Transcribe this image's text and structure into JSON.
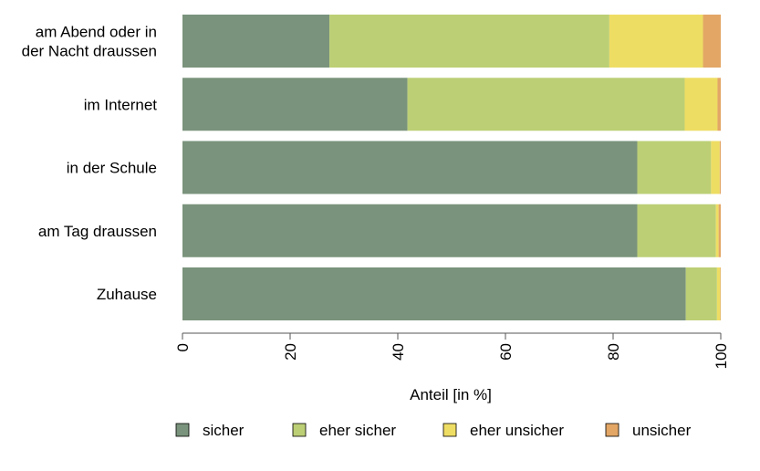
{
  "chart_data": {
    "type": "bar",
    "orientation": "horizontal",
    "stacked": true,
    "categories": [
      [
        "am Abend oder in",
        "der Nacht draussen"
      ],
      [
        "im Internet"
      ],
      [
        "in der Schule"
      ],
      [
        "am Tag draussen"
      ],
      [
        "Zuhause"
      ]
    ],
    "series": [
      {
        "name": "sicher",
        "color": "#7a937c",
        "values": [
          27.3,
          41.8,
          84.5,
          84.5,
          93.5
        ]
      },
      {
        "name": "eher sicher",
        "color": "#bccf75",
        "values": [
          52.0,
          51.5,
          13.7,
          14.6,
          5.8
        ]
      },
      {
        "name": "eher unsicher",
        "color": "#eedd63",
        "values": [
          17.4,
          6.1,
          1.6,
          0.5,
          0.6
        ]
      },
      {
        "name": "unsicher",
        "color": "#e3a665",
        "values": [
          3.3,
          0.6,
          0.2,
          0.4,
          0.1
        ]
      }
    ],
    "xlabel": "Anteil [in %]",
    "xlim": [
      0,
      100
    ],
    "xticks": [
      0,
      20,
      40,
      60,
      80,
      100
    ],
    "grid": false,
    "legend_position": "bottom"
  }
}
